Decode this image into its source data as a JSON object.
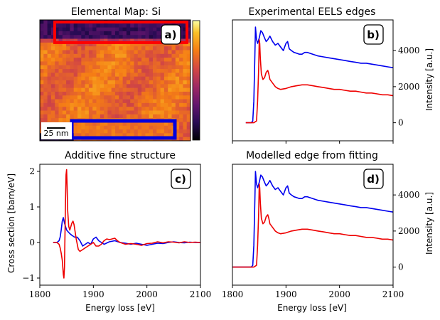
{
  "figure": {
    "panel_a": {
      "title": "Elemental Map: Si",
      "badge": "a)",
      "scale_label": "25 nm"
    },
    "panel_b": {
      "title": "Experimental EELS edges",
      "badge": "b)",
      "ylabel": "Intensity [a.u.]"
    },
    "panel_c": {
      "title": "Additive fine structure",
      "badge": "c)",
      "ylabel": "Cross section [barn/eV]",
      "xlabel": "Energy loss [eV]"
    },
    "panel_d": {
      "title": "Modelled edge from fitting",
      "badge": "d)",
      "ylabel": "Intensity [a.u.]",
      "xlabel": "Energy loss [eV]"
    }
  },
  "colors": {
    "blue": "#0000ee",
    "red": "#ee0000",
    "box_red": "#ff0000",
    "box_blue": "#0000dd"
  },
  "chart_data": [
    {
      "type": "heatmap",
      "title": "Elemental Map: Si",
      "colormap": "inferno",
      "annotations": [
        "a)",
        "25 nm"
      ],
      "notes": "Si elemental map; dark top rows, bright orange/yellow bulk; red rectangle top region, blue rectangle bottom region; colorbar without tick labels"
    },
    {
      "type": "line",
      "title": "Experimental EELS edges",
      "xlabel": "",
      "ylabel": "Intensity [a.u.]",
      "xlim": [
        1800,
        2100
      ],
      "ylim": [
        -1000,
        5700
      ],
      "yticks": [
        0,
        2000,
        4000
      ],
      "yaxis_side": "right",
      "series": [
        {
          "color": "blue",
          "x": [
            1825,
            1835,
            1838,
            1840,
            1842,
            1843,
            1845,
            1847,
            1850,
            1853,
            1856,
            1860,
            1863,
            1866,
            1870,
            1875,
            1880,
            1885,
            1890,
            1895,
            1900,
            1903,
            1906,
            1910,
            1915,
            1920,
            1925,
            1930,
            1935,
            1940,
            1950,
            1960,
            1970,
            1980,
            1990,
            2000,
            2010,
            2020,
            2030,
            2040,
            2050,
            2060,
            2070,
            2080,
            2090,
            2100
          ],
          "y": [
            0,
            0,
            100,
            1200,
            3800,
            5300,
            4600,
            4400,
            4700,
            5100,
            5000,
            4700,
            4500,
            4600,
            4800,
            4500,
            4300,
            4400,
            4200,
            4000,
            4400,
            4500,
            4100,
            4000,
            3900,
            3850,
            3800,
            3800,
            3900,
            3900,
            3800,
            3700,
            3650,
            3600,
            3550,
            3500,
            3450,
            3400,
            3350,
            3300,
            3300,
            3250,
            3200,
            3150,
            3100,
            3050
          ]
        },
        {
          "color": "red",
          "x": [
            1825,
            1840,
            1845,
            1847,
            1849,
            1850,
            1851,
            1852,
            1854,
            1857,
            1860,
            1863,
            1866,
            1868,
            1870,
            1875,
            1880,
            1885,
            1890,
            1900,
            1910,
            1920,
            1930,
            1940,
            1950,
            1960,
            1970,
            1980,
            1990,
            2000,
            2010,
            2020,
            2030,
            2040,
            2050,
            2060,
            2070,
            2080,
            2090,
            2100
          ],
          "y": [
            0,
            0,
            100,
            1200,
            3000,
            4600,
            4400,
            3600,
            2700,
            2400,
            2500,
            2800,
            2900,
            2700,
            2400,
            2200,
            2000,
            1900,
            1850,
            1900,
            2000,
            2050,
            2100,
            2100,
            2050,
            2000,
            1950,
            1900,
            1850,
            1850,
            1800,
            1750,
            1750,
            1700,
            1650,
            1650,
            1600,
            1550,
            1550,
            1500
          ]
        }
      ]
    },
    {
      "type": "line",
      "title": "Additive fine structure",
      "xlabel": "Energy loss [eV]",
      "ylabel": "Cross section [barn/eV]",
      "xlim": [
        1800,
        2100
      ],
      "ylim": [
        -1.2,
        2.2
      ],
      "xticks": [
        1800,
        1900,
        2000,
        2100
      ],
      "yticks": [
        -1,
        0,
        1,
        2
      ],
      "series": [
        {
          "color": "blue",
          "x": [
            1825,
            1832,
            1836,
            1838,
            1840,
            1842,
            1844,
            1846,
            1848,
            1850,
            1853,
            1856,
            1860,
            1865,
            1870,
            1875,
            1880,
            1885,
            1890,
            1895,
            1900,
            1905,
            1910,
            1920,
            1930,
            1940,
            1950,
            1960,
            1970,
            1980,
            1990,
            2000,
            2010,
            2020,
            2030,
            2040,
            2050,
            2060,
            2070,
            2080,
            2090,
            2100
          ],
          "y": [
            0,
            0,
            0.05,
            0.15,
            0.35,
            0.6,
            0.7,
            0.55,
            0.45,
            0.35,
            0.3,
            0.25,
            0.2,
            0.15,
            0.15,
            0.05,
            -0.1,
            -0.05,
            0,
            -0.05,
            0.1,
            0.15,
            0.05,
            -0.05,
            0.02,
            0.05,
            0,
            -0.02,
            -0.05,
            -0.02,
            -0.05,
            -0.08,
            -0.05,
            -0.02,
            -0.03,
            0,
            0.02,
            0,
            -0.01,
            0.01,
            0,
            0
          ]
        },
        {
          "color": "red",
          "x": [
            1825,
            1832,
            1836,
            1838,
            1840,
            1842,
            1844,
            1845,
            1846,
            1847,
            1848,
            1849,
            1850,
            1851,
            1852,
            1854,
            1856,
            1858,
            1860,
            1862,
            1864,
            1866,
            1868,
            1870,
            1872,
            1875,
            1880,
            1885,
            1890,
            1895,
            1900,
            1905,
            1910,
            1915,
            1920,
            1925,
            1930,
            1935,
            1940,
            1945,
            1950,
            1960,
            1970,
            1980,
            1990,
            2000,
            2010,
            2020,
            2030,
            2040,
            2050,
            2060,
            2070,
            2080,
            2090,
            2100
          ],
          "y": [
            0,
            0,
            -0.05,
            -0.15,
            -0.3,
            -0.5,
            -0.9,
            -1.0,
            -0.7,
            0.2,
            1.2,
            1.9,
            2.05,
            1.6,
            0.9,
            0.45,
            0.35,
            0.45,
            0.55,
            0.6,
            0.5,
            0.3,
            0.1,
            -0.05,
            -0.2,
            -0.25,
            -0.2,
            -0.15,
            -0.1,
            -0.05,
            0.0,
            -0.1,
            -0.1,
            -0.05,
            0.05,
            0.1,
            0.08,
            0.1,
            0.12,
            0.05,
            0,
            -0.05,
            -0.03,
            -0.05,
            -0.08,
            -0.03,
            -0.02,
            0.02,
            -0.01,
            0.02,
            0.01,
            -0.01,
            0.02,
            0,
            0.01,
            0
          ]
        }
      ]
    },
    {
      "type": "line",
      "title": "Modelled edge from fitting",
      "xlabel": "Energy loss [eV]",
      "ylabel": "Intensity [a.u.]",
      "xlim": [
        1800,
        2100
      ],
      "ylim": [
        -1000,
        5700
      ],
      "xticks": [
        1800,
        1900,
        2000,
        2100
      ],
      "yticks": [
        0,
        2000,
        4000
      ],
      "yaxis_side": "right",
      "series": [
        {
          "color": "blue",
          "x": [
            1800,
            1835,
            1838,
            1840,
            1842,
            1843,
            1845,
            1847,
            1850,
            1853,
            1856,
            1860,
            1863,
            1866,
            1870,
            1875,
            1880,
            1885,
            1890,
            1895,
            1900,
            1903,
            1906,
            1910,
            1915,
            1920,
            1925,
            1930,
            1935,
            1940,
            1950,
            1960,
            1970,
            1980,
            1990,
            2000,
            2010,
            2020,
            2030,
            2040,
            2050,
            2060,
            2070,
            2080,
            2090,
            2100
          ],
          "y": [
            0,
            0,
            100,
            1200,
            3800,
            5300,
            4600,
            4400,
            4700,
            5100,
            5000,
            4700,
            4500,
            4600,
            4800,
            4500,
            4300,
            4400,
            4200,
            4000,
            4400,
            4500,
            4100,
            4000,
            3900,
            3850,
            3800,
            3800,
            3900,
            3900,
            3800,
            3700,
            3650,
            3600,
            3550,
            3500,
            3450,
            3400,
            3350,
            3300,
            3300,
            3250,
            3200,
            3150,
            3100,
            3050
          ]
        },
        {
          "color": "red",
          "x": [
            1800,
            1840,
            1845,
            1847,
            1849,
            1850,
            1851,
            1852,
            1854,
            1857,
            1860,
            1863,
            1866,
            1868,
            1870,
            1875,
            1880,
            1885,
            1890,
            1900,
            1910,
            1920,
            1930,
            1940,
            1950,
            1960,
            1970,
            1980,
            1990,
            2000,
            2010,
            2020,
            2030,
            2040,
            2050,
            2060,
            2070,
            2080,
            2090,
            2100
          ],
          "y": [
            0,
            0,
            100,
            1200,
            3000,
            4600,
            4400,
            3600,
            2700,
            2400,
            2500,
            2800,
            2900,
            2700,
            2400,
            2200,
            2000,
            1900,
            1850,
            1900,
            2000,
            2050,
            2100,
            2100,
            2050,
            2000,
            1950,
            1900,
            1850,
            1850,
            1800,
            1750,
            1750,
            1700,
            1650,
            1650,
            1600,
            1550,
            1550,
            1500
          ]
        }
      ]
    }
  ]
}
